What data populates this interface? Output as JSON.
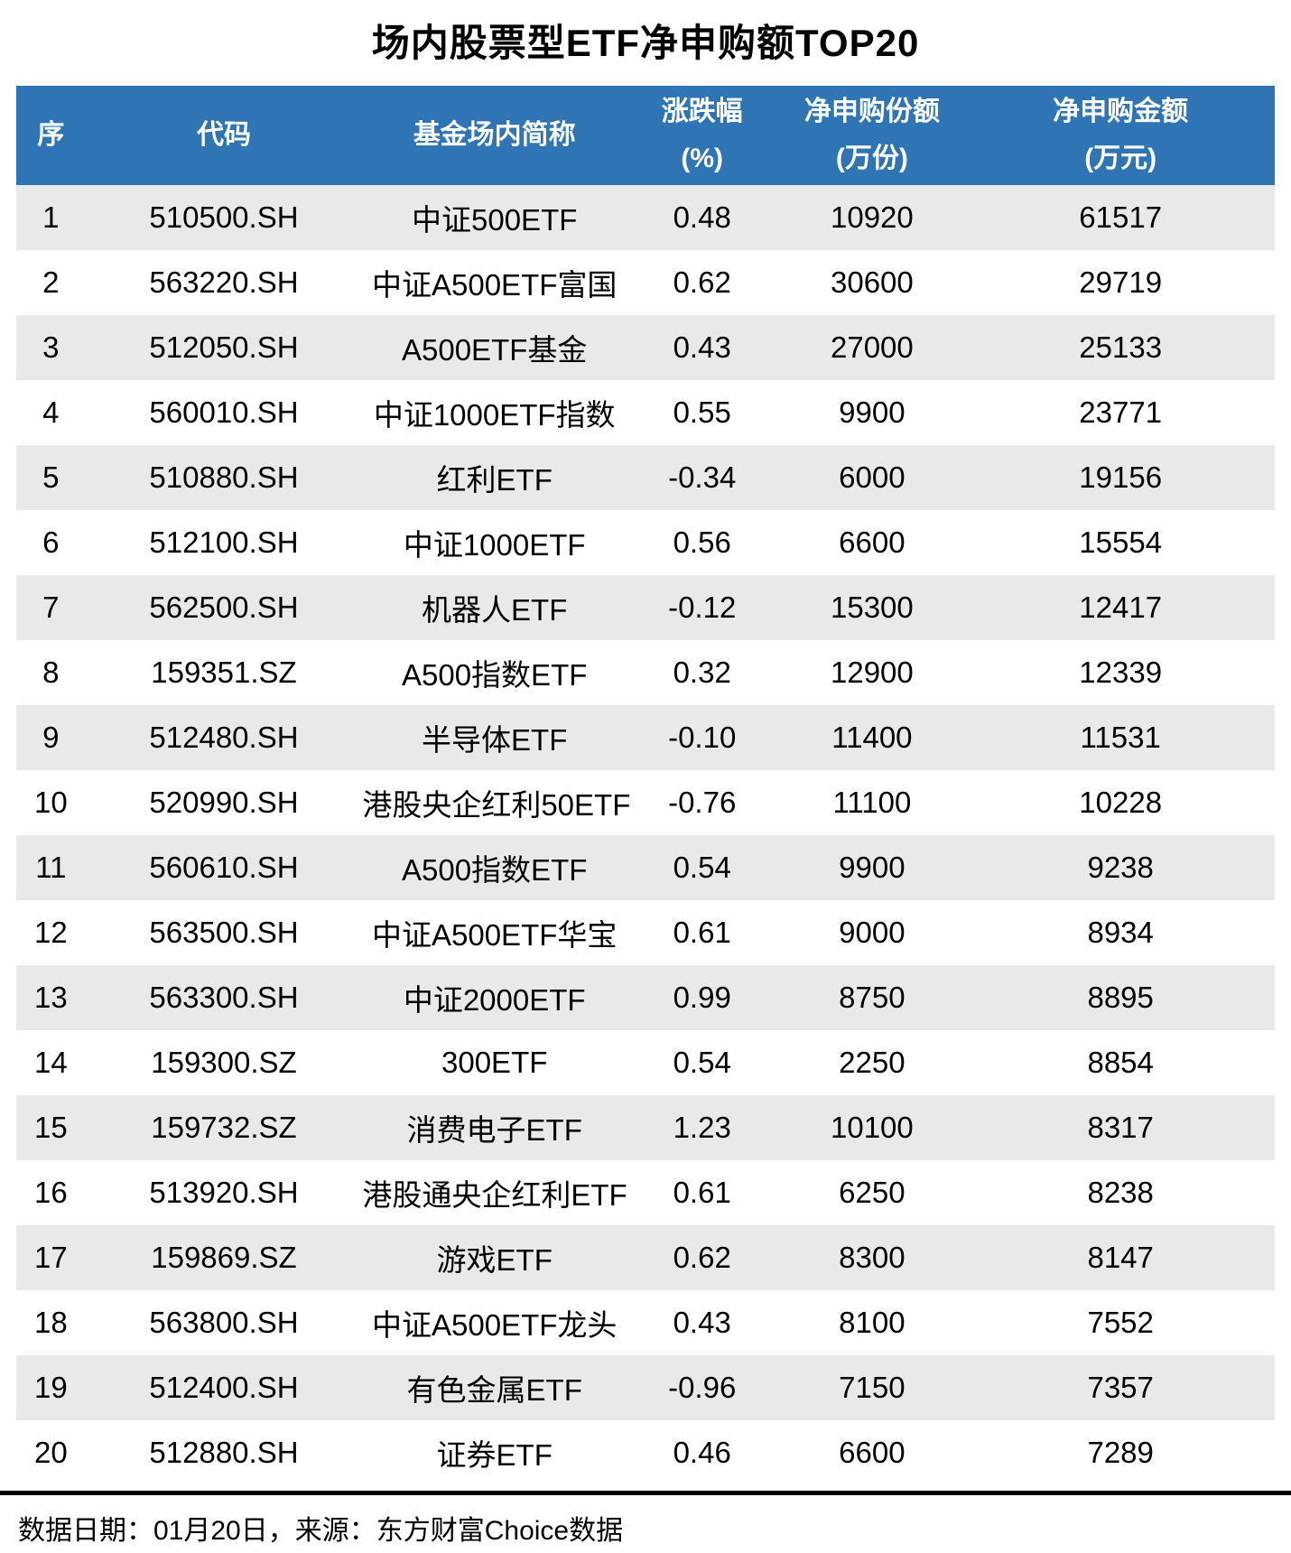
{
  "title": "场内股票型ETF净申购额TOP20",
  "chart_data": {
    "type": "table",
    "title": "场内股票型ETF净申购额TOP20",
    "columns": [
      {
        "key": "rank",
        "label": "序",
        "sub": ""
      },
      {
        "key": "code",
        "label": "代码",
        "sub": ""
      },
      {
        "key": "name",
        "label": "基金场内简称",
        "sub": ""
      },
      {
        "key": "change-pct",
        "label": "涨跌幅",
        "sub": "(%)"
      },
      {
        "key": "net-shares",
        "label": "净申购份额",
        "sub": "(万份)"
      },
      {
        "key": "net-amount",
        "label": "净申购金额",
        "sub": "(万元)"
      }
    ],
    "rows": [
      [
        "1",
        "510500.SH",
        "中证500ETF",
        "0.48",
        "10920",
        "61517"
      ],
      [
        "2",
        "563220.SH",
        "中证A500ETF富国",
        "0.62",
        "30600",
        "29719"
      ],
      [
        "3",
        "512050.SH",
        "A500ETF基金",
        "0.43",
        "27000",
        "25133"
      ],
      [
        "4",
        "560010.SH",
        "中证1000ETF指数",
        "0.55",
        "9900",
        "23771"
      ],
      [
        "5",
        "510880.SH",
        "红利ETF",
        "-0.34",
        "6000",
        "19156"
      ],
      [
        "6",
        "512100.SH",
        "中证1000ETF",
        "0.56",
        "6600",
        "15554"
      ],
      [
        "7",
        "562500.SH",
        "机器人ETF",
        "-0.12",
        "15300",
        "12417"
      ],
      [
        "8",
        "159351.SZ",
        "A500指数ETF",
        "0.32",
        "12900",
        "12339"
      ],
      [
        "9",
        "512480.SH",
        "半导体ETF",
        "-0.10",
        "11400",
        "11531"
      ],
      [
        "10",
        "520990.SH",
        "港股央企红利50ETF",
        "-0.76",
        "11100",
        "10228"
      ],
      [
        "11",
        "560610.SH",
        "A500指数ETF",
        "0.54",
        "9900",
        "9238"
      ],
      [
        "12",
        "563500.SH",
        "中证A500ETF华宝",
        "0.61",
        "9000",
        "8934"
      ],
      [
        "13",
        "563300.SH",
        "中证2000ETF",
        "0.99",
        "8750",
        "8895"
      ],
      [
        "14",
        "159300.SZ",
        "300ETF",
        "0.54",
        "2250",
        "8854"
      ],
      [
        "15",
        "159732.SZ",
        "消费电子ETF",
        "1.23",
        "10100",
        "8317"
      ],
      [
        "16",
        "513920.SH",
        "港股通央企红利ETF",
        "0.61",
        "6250",
        "8238"
      ],
      [
        "17",
        "159869.SZ",
        "游戏ETF",
        "0.62",
        "8300",
        "8147"
      ],
      [
        "18",
        "563800.SH",
        "中证A500ETF龙头",
        "0.43",
        "8100",
        "7552"
      ],
      [
        "19",
        "512400.SH",
        "有色金属ETF",
        "-0.96",
        "7150",
        "7357"
      ],
      [
        "20",
        "512880.SH",
        "证券ETF",
        "0.46",
        "6600",
        "7289"
      ]
    ]
  },
  "footer": {
    "note": "数据日期：01月20日，来源：东方财富Choice数据"
  },
  "colors": {
    "header_bg": "#2F74B5",
    "header_text": "#FFFFFF",
    "stripe_bg": "#E9E9E9",
    "divider": "#000000",
    "title_text": "#000000"
  }
}
